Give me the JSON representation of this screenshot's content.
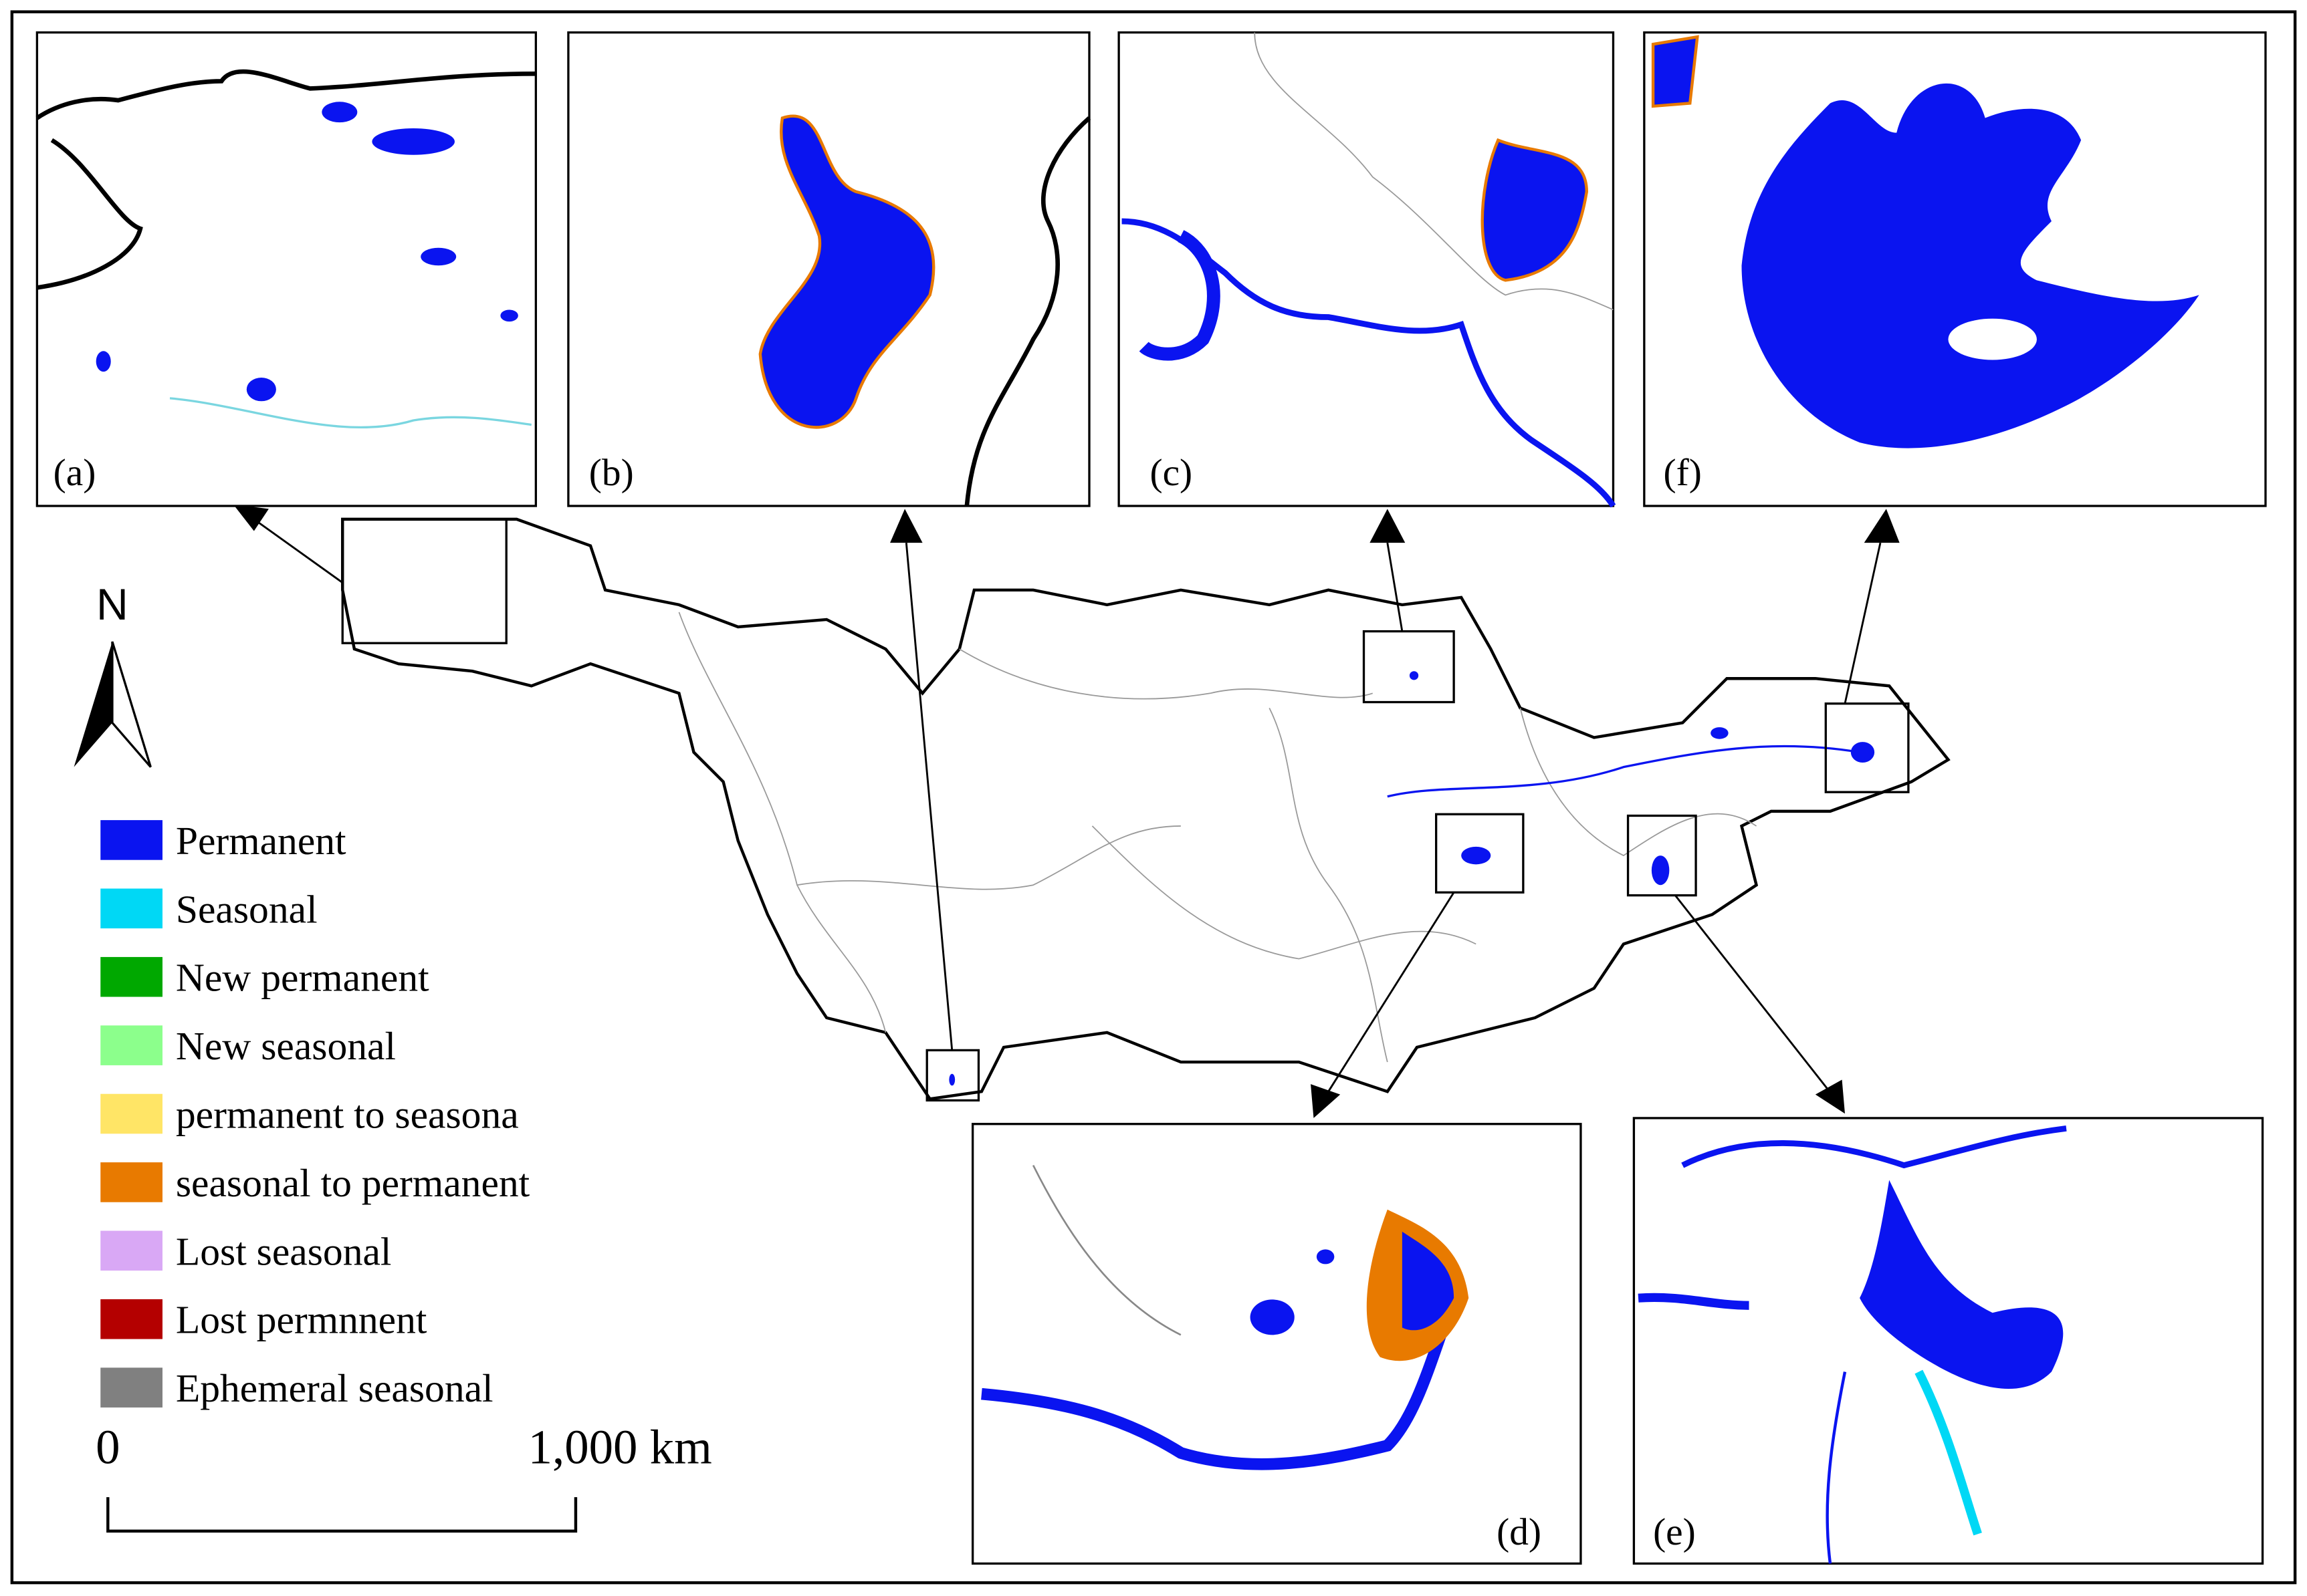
{
  "north_label": "N",
  "scale_bar": {
    "start": "0",
    "end": "1,000 km"
  },
  "panels": [
    {
      "label": "(a)"
    },
    {
      "label": "(b)"
    },
    {
      "label": "(c)"
    },
    {
      "label": "(f)"
    },
    {
      "label": "(d)"
    },
    {
      "label": "(e)"
    }
  ],
  "legend": [
    {
      "name": "Permanent",
      "color": "#0a14f0"
    },
    {
      "name": "Seasonal",
      "color": "#00d8f5"
    },
    {
      "name": "New permanent",
      "color": "#00a800"
    },
    {
      "name": "New seasonal",
      "color": "#8cff8c"
    },
    {
      "name": "permanent to seasona",
      "color": "#ffe566"
    },
    {
      "name": "seasonal to permanent",
      "color": "#e87a00"
    },
    {
      "name": "Lost seasonal",
      "color": "#d9a8f5"
    },
    {
      "name": "Lost permnnent",
      "color": "#b40000"
    },
    {
      "name": "Ephemeral seasonal",
      "color": "#808080"
    }
  ]
}
